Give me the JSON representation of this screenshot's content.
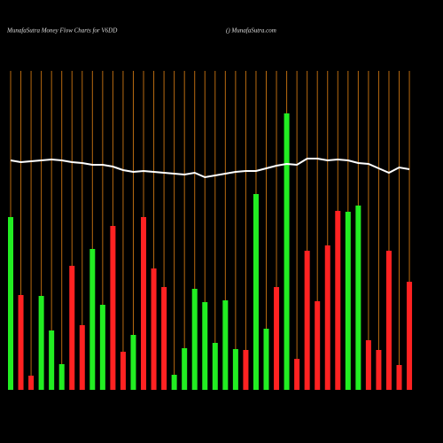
{
  "chart_data": {
    "type": "bar",
    "title": "MunafaSutra  Money Flow  Charts for V6DD",
    "subtitle": "() MunafaSutra.com",
    "ylim": [
      0,
      360
    ],
    "values": [
      195,
      107,
      16,
      106,
      67,
      29,
      140,
      73,
      159,
      96,
      185,
      43,
      62,
      195,
      137,
      116,
      17,
      47,
      114,
      99,
      53,
      101,
      46,
      45,
      221,
      69,
      116,
      312,
      35,
      157,
      100,
      163,
      202,
      201,
      208,
      56,
      45,
      157,
      28,
      122
    ],
    "colors": [
      "#22ee22",
      "#ff2222",
      "#ff2222",
      "#22ee22",
      "#22ee22",
      "#22ee22",
      "#ff2222",
      "#ff2222",
      "#22ee22",
      "#22ee22",
      "#ff2222",
      "#ff2222",
      "#22ee22",
      "#ff2222",
      "#ff2222",
      "#ff2222",
      "#22ee22",
      "#22ee22",
      "#22ee22",
      "#22ee22",
      "#22ee22",
      "#22ee22",
      "#22ee22",
      "#ff2222",
      "#22ee22",
      "#22ee22",
      "#ff2222",
      "#22ee22",
      "#ff2222",
      "#ff2222",
      "#ff2222",
      "#ff2222",
      "#ff2222",
      "#22ee22",
      "#22ee22",
      "#ff2222",
      "#ff2222",
      "#ff2222",
      "#ff2222",
      "#ff2222"
    ],
    "line": {
      "color": "#ffffff",
      "values": [
        259,
        257,
        258,
        259,
        260,
        259,
        257,
        256,
        254,
        254,
        252,
        248,
        246,
        247,
        246,
        245,
        244,
        243,
        245,
        240,
        242,
        244,
        246,
        247,
        247,
        250,
        253,
        255,
        254,
        261,
        261,
        259,
        260,
        259,
        256,
        255,
        250,
        245,
        251,
        249
      ]
    },
    "gridline_color": "#b86a10"
  }
}
